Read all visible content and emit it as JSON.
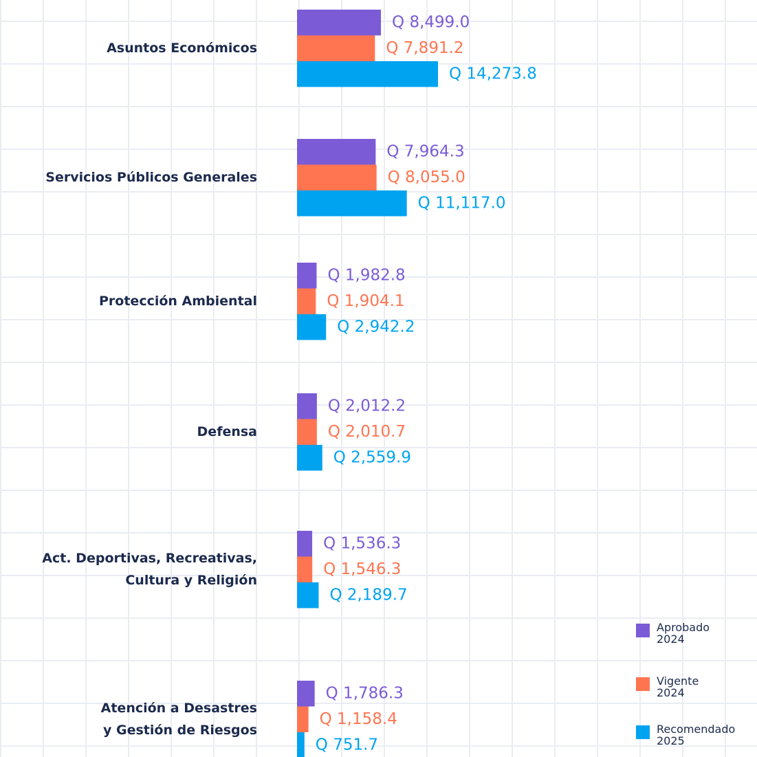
{
  "chart_data": {
    "type": "bar",
    "orientation": "horizontal",
    "categories": [
      "Asuntos Económicos",
      "Servicios Públicos Generales",
      "Protección Ambiental",
      "Defensa",
      "Act. Deportivas, Recreativas,\nCultura y Religión",
      "Atención a Desastres\ny Gestión de Riesgos"
    ],
    "series": [
      {
        "name": "Aprobado\n2024",
        "color": "#7b5cd6",
        "values": [
          8499.0,
          7964.3,
          1982.8,
          2012.2,
          1536.3,
          1786.3
        ],
        "value_labels": [
          "Q 8,499.0",
          "Q 7,964.3",
          "Q 1,982.8",
          "Q 2,012.2",
          "Q 1,536.3",
          "Q 1,786.3"
        ]
      },
      {
        "name": "Vigente\n2024",
        "color": "#ff7551",
        "values": [
          7891.2,
          8055.0,
          1904.1,
          2010.7,
          1546.3,
          1158.4
        ],
        "value_labels": [
          "Q 7,891.2",
          "Q 8,055.0",
          "Q 1,904.1",
          "Q 2,010.7",
          "Q 1,546.3",
          "Q 1,158.4"
        ]
      },
      {
        "name": "Recomendado\n2025",
        "color": "#00a3f0",
        "values": [
          14273.8,
          11117.0,
          2942.2,
          2559.9,
          2189.7,
          751.7
        ],
        "value_labels": [
          "Q 14,273.8",
          "Q 11,117.0",
          "Q 2,942.2",
          "Q 2,559.9",
          "Q 2,189.7",
          "Q 751.7"
        ]
      }
    ],
    "legend": "bottom-right"
  }
}
